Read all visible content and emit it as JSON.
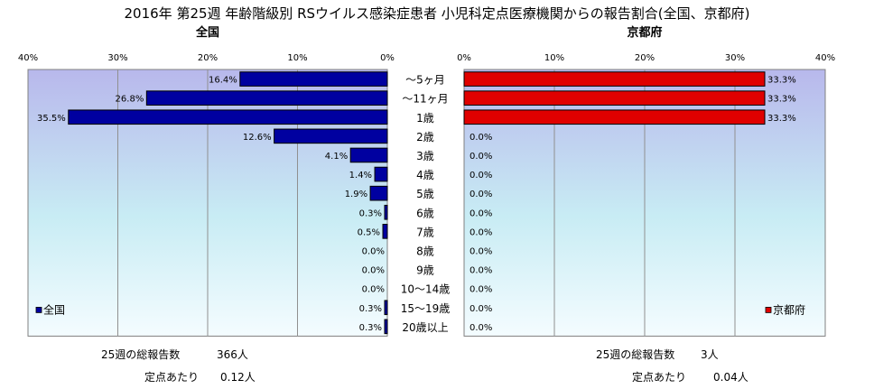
{
  "title": "2016年 第25週 年齢階級別 RSウイルス感染症患者 小児科定点医療機関からの報告割合(全国、京都府)",
  "chart_data": [
    {
      "type": "bar",
      "orientation": "horizontal",
      "direction": "reversed",
      "title": "全国",
      "categories": [
        "～5ヶ月",
        "～11ヶ月",
        "1歳",
        "2歳",
        "3歳",
        "4歳",
        "5歳",
        "6歳",
        "7歳",
        "8歳",
        "9歳",
        "10～14歳",
        "15～19歳",
        "20歳以上"
      ],
      "series": [
        {
          "name": "全国",
          "color": "#0000a0",
          "values": [
            16.4,
            26.8,
            35.5,
            12.6,
            4.1,
            1.4,
            1.9,
            0.3,
            0.5,
            0.0,
            0.0,
            0.0,
            0.3,
            0.3
          ],
          "labels": [
            "16.4%",
            "26.8%",
            "35.5%",
            "12.6%",
            "4.1%",
            "1.4%",
            "1.9%",
            "0.3%",
            "0.5%",
            "0.0%",
            "0.0%",
            "0.0%",
            "0.3%",
            "0.3%"
          ]
        }
      ],
      "xlim": [
        0,
        40
      ],
      "xticks": [
        "40%",
        "30%",
        "20%",
        "10%",
        "0%"
      ],
      "grid": true,
      "legend": "bottom-left"
    },
    {
      "type": "bar",
      "orientation": "horizontal",
      "title": "京都府",
      "categories": [
        "～5ヶ月",
        "～11ヶ月",
        "1歳",
        "2歳",
        "3歳",
        "4歳",
        "5歳",
        "6歳",
        "7歳",
        "8歳",
        "9歳",
        "10～14歳",
        "15～19歳",
        "20歳以上"
      ],
      "series": [
        {
          "name": "京都府",
          "color": "#e00000",
          "values": [
            33.3,
            33.3,
            33.3,
            0.0,
            0.0,
            0.0,
            0.0,
            0.0,
            0.0,
            0.0,
            0.0,
            0.0,
            0.0,
            0.0
          ],
          "labels": [
            "33.3%",
            "33.3%",
            "33.3%",
            "0.0%",
            "0.0%",
            "0.0%",
            "0.0%",
            "0.0%",
            "0.0%",
            "0.0%",
            "0.0%",
            "0.0%",
            "0.0%",
            "0.0%"
          ]
        }
      ],
      "xlim": [
        0,
        40
      ],
      "xticks": [
        "0%",
        "10%",
        "20%",
        "30%",
        "40%"
      ],
      "grid": true,
      "legend": "bottom-right"
    }
  ],
  "stats": {
    "national": {
      "total_label": "25週の総報告数",
      "total_value": "366人",
      "per_label": "定点あたり",
      "per_value": "0.12人"
    },
    "kyoto": {
      "total_label": "25週の総報告数",
      "total_value": "3人",
      "per_label": "定点あたり",
      "per_value": "0.04人"
    }
  }
}
